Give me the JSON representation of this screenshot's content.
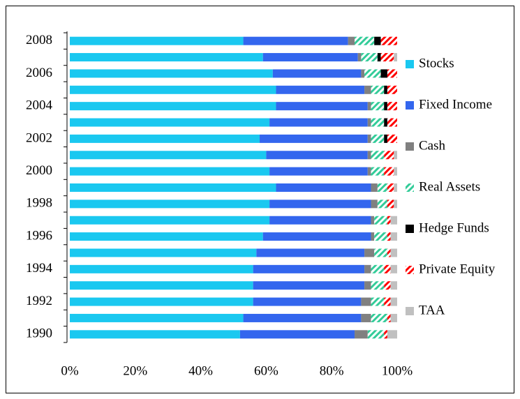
{
  "chart_data": {
    "type": "stacked_barh",
    "categories": [
      "2008",
      null,
      "2006",
      null,
      "2004",
      null,
      "2002",
      null,
      "2000",
      null,
      "1998",
      null,
      "1996",
      null,
      "1994",
      null,
      "1992",
      null,
      "1990"
    ],
    "xlim": [
      0,
      100
    ],
    "xticks": [
      {
        "value": 0,
        "label": "0%"
      },
      {
        "value": 20,
        "label": "20%"
      },
      {
        "value": 40,
        "label": "40%"
      },
      {
        "value": 60,
        "label": "60%"
      },
      {
        "value": 80,
        "label": "80%"
      },
      {
        "value": 100,
        "label": "100%"
      }
    ],
    "legend": "right",
    "series": [
      {
        "name": "Stocks",
        "color": "#1ac8f0",
        "values": [
          53,
          59,
          62,
          63,
          63,
          61,
          58,
          60,
          61,
          63,
          61,
          61,
          59,
          57,
          56,
          56,
          56,
          53,
          52
        ]
      },
      {
        "name": "Fixed Income",
        "color": "#3366ee",
        "values": [
          32,
          29,
          27,
          27,
          28,
          30,
          33,
          31,
          30,
          29,
          31,
          31,
          33,
          33,
          34,
          34,
          33,
          36,
          35
        ]
      },
      {
        "name": "Cash",
        "color": "#808080",
        "values": [
          2,
          1,
          1,
          2,
          1,
          1,
          1,
          1,
          1,
          2,
          2,
          1,
          1,
          3,
          2,
          2,
          3,
          3,
          4
        ]
      },
      {
        "name": "Real Assets",
        "color": "#33cc99",
        "hatch": true,
        "values": [
          6,
          5,
          5,
          4,
          4,
          4,
          4,
          4,
          4,
          3,
          3,
          4,
          4,
          4,
          4,
          4,
          4,
          5,
          5
        ]
      },
      {
        "name": "Hedge Funds",
        "color": "#000000",
        "values": [
          2,
          1,
          2,
          1,
          1,
          1,
          1,
          0,
          0,
          0,
          0,
          0,
          0,
          0,
          0,
          0,
          0,
          0,
          0
        ]
      },
      {
        "name": "Private Equity",
        "color": "#ff0000",
        "hatch": true,
        "values": [
          5,
          4,
          3,
          3,
          3,
          3,
          3,
          3,
          3,
          2,
          2,
          1,
          1,
          1,
          2,
          2,
          2,
          1,
          1
        ]
      },
      {
        "name": "TAA",
        "color": "#c0c0c0",
        "values": [
          0,
          1,
          0,
          0,
          0,
          0,
          0,
          1,
          1,
          1,
          1,
          2,
          2,
          2,
          2,
          2,
          2,
          2,
          3
        ]
      }
    ]
  }
}
